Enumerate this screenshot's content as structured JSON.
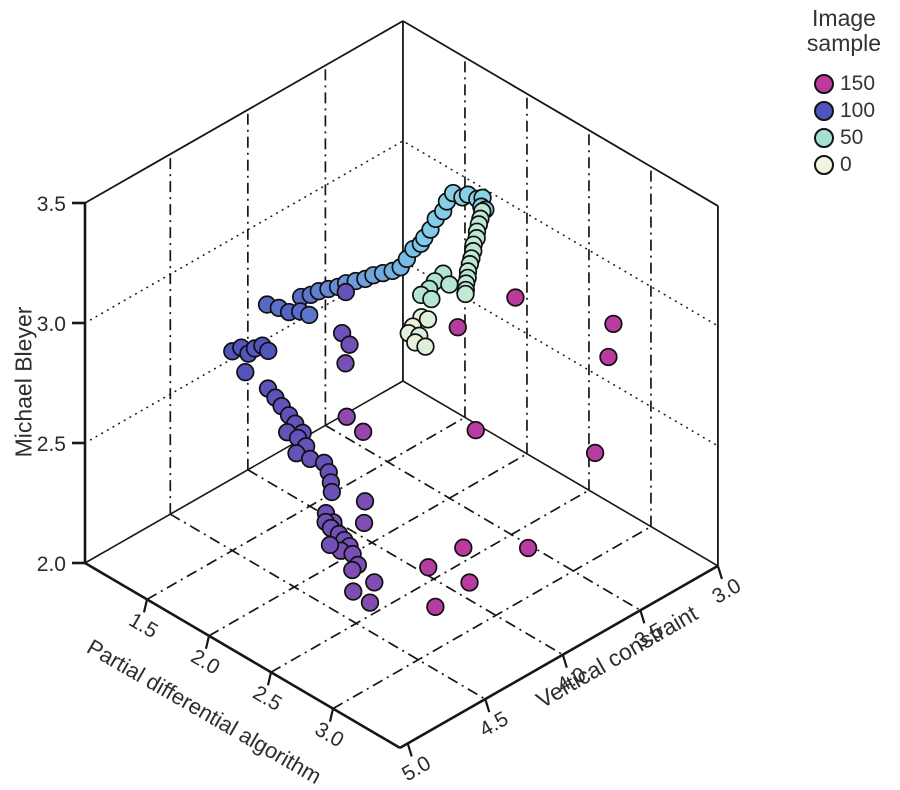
{
  "chart_data": {
    "type": "scatter",
    "subtype": "3d-scatter",
    "title": "",
    "axes": {
      "x": {
        "label": "Partial differential algorithm",
        "ticks": [
          1.5,
          2.0,
          2.5,
          3.0
        ],
        "range": [
          1.0,
          3.54
        ]
      },
      "y": {
        "label": "Vertical constraint",
        "ticks": [
          5.0,
          4.5,
          4.0,
          3.5,
          3.0
        ],
        "range": [
          3.0,
          5.05
        ]
      },
      "z": {
        "label": "Michael Bleyer",
        "ticks": [
          3.5,
          3.0,
          2.5,
          2.0
        ],
        "range": [
          2.0,
          3.5
        ]
      }
    },
    "legend": {
      "title": "Image sample",
      "items": [
        {
          "label": "150",
          "value": 150
        },
        {
          "label": "100",
          "value": 100
        },
        {
          "label": "50",
          "value": 50
        },
        {
          "label": "0",
          "value": 0
        }
      ]
    },
    "colormap": {
      "stops": [
        [
          0,
          "#f1f5dd"
        ],
        [
          50,
          "#a4e1d0"
        ],
        [
          75,
          "#7fcbea"
        ],
        [
          100,
          "#4f55bf"
        ],
        [
          125,
          "#7b4fb4"
        ],
        [
          150,
          "#bc3a9e"
        ]
      ]
    },
    "grid": {
      "floor_dashdot": true,
      "wall_dashdot": true,
      "z_dotted": [
        2.5,
        3.0
      ]
    },
    "points": [
      [
        1.93,
        4.4,
        3.15,
        95
      ],
      [
        1.97,
        4.37,
        3.16,
        93
      ],
      [
        2.01,
        4.35,
        3.18,
        91
      ],
      [
        2.05,
        4.32,
        3.19,
        89
      ],
      [
        2.09,
        4.29,
        3.2,
        88
      ],
      [
        2.13,
        4.27,
        3.22,
        86
      ],
      [
        2.17,
        4.24,
        3.23,
        85
      ],
      [
        2.21,
        4.21,
        3.24,
        84
      ],
      [
        2.25,
        4.19,
        3.26,
        83
      ],
      [
        2.29,
        4.16,
        3.27,
        82
      ],
      [
        2.33,
        4.13,
        3.28,
        81
      ],
      [
        2.37,
        4.11,
        3.3,
        80
      ],
      [
        2.37,
        4.07,
        3.32,
        78
      ],
      [
        2.36,
        4.02,
        3.34,
        77
      ],
      [
        2.37,
        3.98,
        3.35,
        76
      ],
      [
        2.36,
        3.95,
        3.36,
        75
      ],
      [
        2.36,
        3.91,
        3.38,
        74
      ],
      [
        2.34,
        3.86,
        3.4,
        73
      ],
      [
        2.35,
        3.82,
        3.42,
        72
      ],
      [
        2.33,
        3.78,
        3.44,
        71
      ],
      [
        2.33,
        3.74,
        3.46,
        70
      ],
      [
        2.38,
        3.72,
        3.45,
        70
      ],
      [
        2.4,
        3.7,
        3.46,
        69
      ],
      [
        2.45,
        3.68,
        3.45,
        68
      ],
      [
        2.48,
        3.67,
        3.46,
        68
      ],
      [
        2.47,
        3.67,
        3.42,
        69
      ],
      [
        2.49,
        3.66,
        3.41,
        70
      ],
      [
        1.68,
        4.42,
        3.05,
        96
      ],
      [
        1.75,
        4.4,
        3.05,
        94
      ],
      [
        1.82,
        4.39,
        3.05,
        97
      ],
      [
        1.86,
        4.35,
        3.05,
        95
      ],
      [
        1.92,
        4.34,
        3.05,
        93
      ],
      [
        1.7,
        4.66,
        2.95,
        100
      ],
      [
        1.71,
        4.61,
        2.95,
        102
      ],
      [
        1.78,
        4.62,
        2.95,
        101
      ],
      [
        1.77,
        4.57,
        2.95,
        99
      ],
      [
        1.78,
        4.53,
        2.95,
        103
      ],
      [
        1.84,
        4.54,
        2.95,
        100
      ],
      [
        1.78,
        4.64,
        2.88,
        104
      ],
      [
        2.3,
        3.92,
        3.0,
        8
      ],
      [
        2.34,
        3.91,
        3.0,
        12
      ],
      [
        2.33,
        4.0,
        3.0,
        5
      ],
      [
        2.36,
        4.05,
        3.0,
        10
      ],
      [
        2.42,
        4.03,
        3.0,
        15
      ],
      [
        2.45,
        4.08,
        3.0,
        6
      ],
      [
        2.52,
        4.07,
        3.0,
        14
      ],
      [
        2.25,
        3.74,
        3.1,
        40
      ],
      [
        2.27,
        3.81,
        3.1,
        42
      ],
      [
        2.35,
        3.78,
        3.1,
        38
      ],
      [
        2.3,
        3.87,
        3.1,
        44
      ],
      [
        2.31,
        3.93,
        3.1,
        41
      ],
      [
        2.38,
        3.92,
        3.1,
        39
      ],
      [
        2.39,
        3.6,
        3.35,
        35
      ],
      [
        2.4,
        3.62,
        3.33,
        33
      ],
      [
        2.4,
        3.63,
        3.31,
        34
      ],
      [
        2.41,
        3.65,
        3.29,
        32
      ],
      [
        2.42,
        3.66,
        3.27,
        36
      ],
      [
        2.42,
        3.68,
        3.25,
        30
      ],
      [
        2.43,
        3.69,
        3.23,
        37
      ],
      [
        2.44,
        3.71,
        3.21,
        31
      ],
      [
        2.44,
        3.72,
        3.19,
        34
      ],
      [
        2.45,
        3.74,
        3.17,
        29
      ],
      [
        2.46,
        3.75,
        3.15,
        38
      ],
      [
        2.46,
        3.76,
        3.13,
        33
      ],
      [
        2.47,
        3.77,
        3.11,
        36
      ],
      [
        2.48,
        3.78,
        3.1,
        30
      ],
      [
        1.99,
        4.16,
        3.1,
        113
      ],
      [
        1.76,
        4.0,
        2.8,
        118
      ],
      [
        1.87,
        4.04,
        2.8,
        120
      ],
      [
        1.85,
        4.05,
        2.72,
        122
      ],
      [
        1.55,
        4.31,
        2.62,
        106
      ],
      [
        1.61,
        4.31,
        2.6,
        108
      ],
      [
        1.66,
        4.31,
        2.58,
        110
      ],
      [
        1.72,
        4.31,
        2.56,
        109
      ],
      [
        1.77,
        4.31,
        2.54,
        111
      ],
      [
        1.83,
        4.31,
        2.52,
        107
      ],
      [
        1.73,
        4.33,
        2.5,
        112
      ],
      [
        1.78,
        4.3,
        2.48,
        110
      ],
      [
        1.82,
        4.28,
        2.45,
        113
      ],
      [
        1.78,
        4.31,
        2.42,
        111
      ],
      [
        1.84,
        4.27,
        2.4,
        114
      ],
      [
        1.89,
        4.22,
        2.38,
        112
      ],
      [
        1.94,
        4.23,
        2.36,
        114
      ],
      [
        1.97,
        4.24,
        2.33,
        116
      ],
      [
        1.99,
        4.25,
        2.3,
        115
      ],
      [
        1.98,
        4.28,
        2.22,
        117
      ],
      [
        2.04,
        4.28,
        2.2,
        118
      ],
      [
        2.04,
        4.33,
        2.22,
        116
      ],
      [
        2.07,
        4.32,
        2.2,
        118
      ],
      [
        2.11,
        4.3,
        2.18,
        120
      ],
      [
        2.14,
        4.29,
        2.16,
        119
      ],
      [
        2.17,
        4.28,
        2.14,
        121
      ],
      [
        2.1,
        4.28,
        2.1,
        122
      ],
      [
        2.05,
        4.31,
        2.12,
        120
      ],
      [
        2.17,
        4.26,
        2.1,
        123
      ],
      [
        2.27,
        4.26,
        2.35,
        124
      ],
      [
        2.3,
        4.29,
        2.28,
        126
      ],
      [
        2.3,
        4.33,
        2.12,
        125
      ],
      [
        2.28,
        4.35,
        2.1,
        127
      ],
      [
        2.42,
        4.32,
        2.08,
        128
      ],
      [
        2.3,
        4.36,
        2.02,
        126
      ],
      [
        2.41,
        4.34,
        2.0,
        129
      ],
      [
        2.16,
        4.29,
        2.68,
        134
      ],
      [
        2.23,
        4.24,
        2.62,
        136
      ],
      [
        2.43,
        3.79,
        2.95,
        148
      ],
      [
        2.62,
        3.57,
        3.05,
        150
      ],
      [
        3.11,
        3.33,
        3.0,
        149
      ],
      [
        3.12,
        3.37,
        2.88,
        150
      ],
      [
        3.1,
        3.44,
        2.5,
        148
      ],
      [
        2.6,
        3.81,
        2.58,
        149
      ],
      [
        2.6,
        3.89,
        2.12,
        150
      ],
      [
        2.91,
        3.72,
        2.15,
        149
      ],
      [
        2.48,
        4.02,
        2.05,
        147
      ],
      [
        2.7,
        3.93,
        2.02,
        150
      ],
      [
        2.7,
        4.15,
        2.0,
        148
      ]
    ]
  }
}
